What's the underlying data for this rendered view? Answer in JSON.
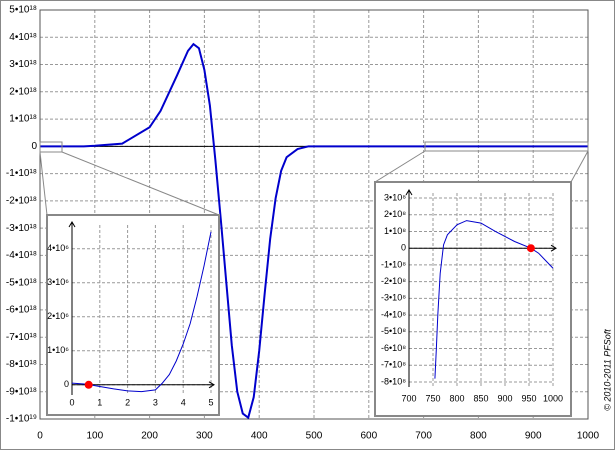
{
  "chart_data": [
    {
      "type": "line",
      "xlim": [
        0,
        1000
      ],
      "xticks": [
        0,
        100,
        200,
        300,
        400,
        500,
        600,
        700,
        800,
        900,
        1000
      ],
      "ylim": [
        -1e+19,
        5e+18
      ],
      "yticks": [
        {
          "value": 5e+18,
          "label": "5•10¹⁸"
        },
        {
          "value": 4e+18,
          "label": "4•10¹⁸"
        },
        {
          "value": 3e+18,
          "label": "3•10¹⁸"
        },
        {
          "value": 2e+18,
          "label": "2•10¹⁸"
        },
        {
          "value": 1e+18,
          "label": "1•10¹⁸"
        },
        0,
        {
          "value": -1e+18,
          "label": "-1•10¹⁸"
        },
        {
          "value": -2e+18,
          "label": "-2•10¹⁸"
        },
        {
          "value": -3e+18,
          "label": "-3•10¹⁸"
        },
        {
          "value": -4e+18,
          "label": "-4•10¹⁸"
        },
        {
          "value": -5e+18,
          "label": "-5•10¹⁸"
        },
        {
          "value": -6e+18,
          "label": "-6•10¹⁸"
        },
        {
          "value": -7e+18,
          "label": "-7•10¹⁸"
        },
        {
          "value": -8e+18,
          "label": "-8•10¹⁸"
        },
        {
          "value": -9e+18,
          "label": "-9•10¹⁸"
        },
        {
          "value": -1e+19,
          "label": "-1•10¹⁹"
        }
      ],
      "grid": true,
      "x": [
        0,
        50,
        80,
        100,
        150,
        200,
        220,
        250,
        270,
        280,
        290,
        300,
        310,
        320,
        330,
        340,
        350,
        360,
        370,
        380,
        390,
        400,
        410,
        420,
        430,
        440,
        450,
        470,
        490,
        500,
        1000
      ],
      "series": [
        {
          "color": "#0000cc",
          "values": [
            0,
            0,
            0,
            2e+16,
            1e+17,
            7e+17,
            1.3e+18,
            2.6e+18,
            3.5e+18,
            3.75e+18,
            3.6e+18,
            2.8e+18,
            1.5e+18,
            -5e+17,
            -2.7e+18,
            -5e+18,
            -7.3e+18,
            -9e+18,
            -9.8e+18,
            -9.95e+18,
            -9.2e+18,
            -7.5e+18,
            -5.4e+18,
            -3.4e+18,
            -1.9e+18,
            -9e+17,
            -4e+17,
            -1e+17,
            0,
            0,
            0
          ]
        }
      ]
    },
    {
      "type": "line",
      "xlim": [
        0,
        5
      ],
      "xticks": [
        0,
        1,
        2,
        3,
        4,
        5
      ],
      "ylim": [
        -300000,
        4700000
      ],
      "yticks": [
        0,
        {
          "value": 1000000,
          "label": "1•10⁶"
        },
        {
          "value": 2000000,
          "label": "2•10⁶"
        },
        {
          "value": 3000000,
          "label": "3•10⁶"
        },
        {
          "value": 4000000,
          "label": "4•10⁶"
        }
      ],
      "grid": true,
      "x": [
        0,
        0.5,
        1,
        1.5,
        2,
        2.5,
        3,
        3.25,
        3.5,
        3.75,
        4,
        4.25,
        4.5,
        4.75,
        5
      ],
      "series": [
        {
          "color": "#0000cc",
          "values": [
            50000,
            20000,
            -50000,
            -120000,
            -180000,
            -200000,
            -150000,
            50000,
            300000,
            700000,
            1200000,
            1800000,
            2600000,
            3500000,
            4500000
          ]
        }
      ],
      "marker": {
        "x": 0.6,
        "y": 0,
        "color": "#ff0000"
      }
    },
    {
      "type": "line",
      "xlim": [
        700,
        1000
      ],
      "xticks": [
        700,
        750,
        800,
        850,
        900,
        950,
        1000
      ],
      "ylim": [
        -830000000,
        330000000
      ],
      "yticks": [
        {
          "value": 300000000,
          "label": "3•10⁸"
        },
        {
          "value": 200000000,
          "label": "2•10⁸"
        },
        {
          "value": 100000000,
          "label": "1•10⁸"
        },
        0,
        {
          "value": -100000000,
          "label": "-1•10⁸"
        },
        {
          "value": -200000000,
          "label": "-2•10⁸"
        },
        {
          "value": -300000000,
          "label": "-3•10⁸"
        },
        {
          "value": -400000000,
          "label": "-4•10⁸"
        },
        {
          "value": -500000000,
          "label": "-5•10⁸"
        },
        {
          "value": -600000000,
          "label": "-6•10⁸"
        },
        {
          "value": -700000000,
          "label": "-7•10⁸"
        },
        {
          "value": -800000000,
          "label": "-8•10⁸"
        }
      ],
      "grid": true,
      "x": [
        754,
        757,
        760,
        765,
        772,
        780,
        800,
        820,
        850,
        880,
        920,
        954,
        970,
        1000
      ],
      "series": [
        {
          "color": "#0000cc",
          "values": [
            -780000000,
            -600000000,
            -400000000,
            -150000000,
            20000000,
            80000000,
            140000000,
            165000000,
            150000000,
            100000000,
            40000000,
            0,
            -30000000,
            -120000000
          ]
        }
      ],
      "marker": {
        "x": 954,
        "y": 0,
        "color": "#ff0000"
      }
    }
  ],
  "copyright": "© 2010-2011  PFSoft"
}
